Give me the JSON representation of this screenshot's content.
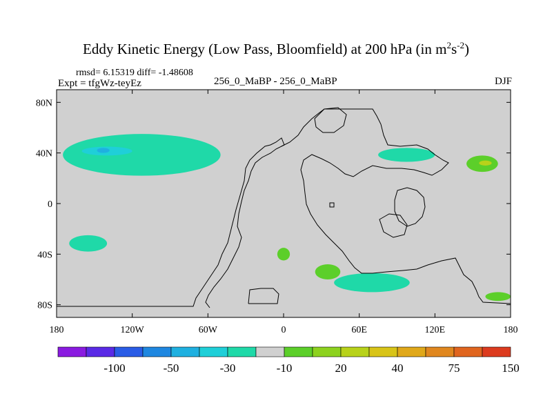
{
  "chart_data": {
    "type": "heatmap",
    "title_main": "Eddy Kinetic Energy (Low Pass, Bloomfield) at 200 hPa (in m",
    "title_unit_m_exp": "2",
    "title_unit_s": "s",
    "title_unit_s_exp": "-2",
    "title_close": ")",
    "rmsd_text": "rmsd= 6.15319 diff= -1.48608",
    "expt_text": "Expt = tfgWz-teyEz",
    "center_text": "256_0_MaBP - 256_0_MaBP",
    "season": "DJF",
    "x_ticks": [
      "180",
      "120W",
      "60W",
      "0",
      "60E",
      "120E",
      "180"
    ],
    "x_tick_values": [
      -180,
      -120,
      -60,
      0,
      60,
      120,
      180
    ],
    "y_ticks": [
      "80N",
      "40N",
      "0",
      "40S",
      "80S"
    ],
    "y_tick_values": [
      80,
      40,
      0,
      -40,
      -80
    ],
    "xlim": [
      -180,
      180
    ],
    "ylim": [
      -90,
      90
    ],
    "colorbar": {
      "labels": [
        "-100",
        "-50",
        "-30",
        "-10",
        "20",
        "40",
        "75",
        "150"
      ],
      "colors": [
        "#8a1be0",
        "#5a2ae6",
        "#2a5ce6",
        "#1f87e0",
        "#1fb0e0",
        "#1fcfd8",
        "#1fd9a8",
        "#d0d0d0",
        "#5ccf2a",
        "#8dd21f",
        "#b8d21a",
        "#d8c418",
        "#e0a81a",
        "#e0871f",
        "#e0651f",
        "#dc3b1f"
      ]
    },
    "regions": [
      {
        "label": "North Pacific / Atlantic jet (positive cyan)",
        "level": "-10",
        "color": "#1fd9a8",
        "lon": [
          -175,
          -50
        ],
        "lat": [
          22,
          55
        ]
      },
      {
        "label": "North Pacific core",
        "level": "-30",
        "color": "#1fcfd8",
        "lon": [
          -160,
          -120
        ],
        "lat": [
          38,
          45
        ]
      },
      {
        "label": "North Pacific inner core",
        "level": "-50",
        "color": "#1fb0e0",
        "lon": [
          -148,
          -138
        ],
        "lat": [
          40,
          44
        ]
      },
      {
        "label": "East Asia jet",
        "level": "-10",
        "color": "#1fd9a8",
        "lon": [
          75,
          120
        ],
        "lat": [
          33,
          44
        ]
      },
      {
        "label": "Northwest Pacific high",
        "level": "20",
        "color": "#5ccf2a",
        "lon": [
          145,
          170
        ],
        "lat": [
          25,
          38
        ]
      },
      {
        "label": "Northwest Pacific core",
        "level": "40",
        "color": "#b8d21a",
        "lon": [
          155,
          165
        ],
        "lat": [
          30,
          34
        ]
      },
      {
        "label": "Southern Ocean band",
        "level": "-10",
        "color": "#1fd9a8",
        "lon": [
          40,
          100
        ],
        "lat": [
          -70,
          -55
        ]
      },
      {
        "label": "South Pacific band",
        "level": "-10",
        "color": "#1fd9a8",
        "lon": [
          -170,
          -140
        ],
        "lat": [
          -38,
          -25
        ]
      },
      {
        "label": "South Atlantic positive",
        "level": "20",
        "color": "#5ccf2a",
        "lon": [
          -5,
          5
        ],
        "lat": [
          -45,
          -35
        ]
      },
      {
        "label": "South Indian positive",
        "level": "20",
        "color": "#5ccf2a",
        "lon": [
          25,
          45
        ],
        "lat": [
          -60,
          -48
        ]
      },
      {
        "label": "Far South Pacific positive",
        "level": "20",
        "color": "#5ccf2a",
        "lon": [
          160,
          180
        ],
        "lat": [
          -77,
          -70
        ]
      }
    ]
  }
}
